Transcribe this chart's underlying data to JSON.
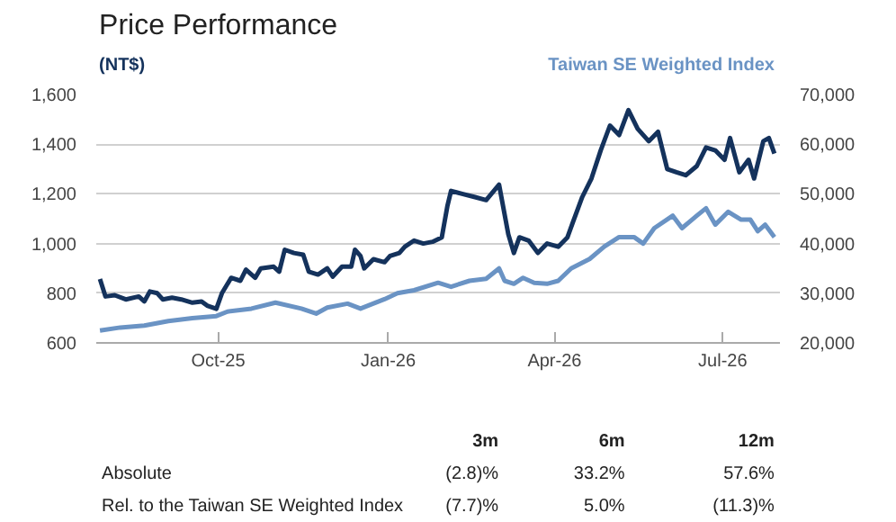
{
  "chart_data": {
    "type": "line",
    "title": "Price Performance",
    "ylabel": "(NT$)",
    "xlim": [
      "2025-07-27",
      "2026-08-01"
    ],
    "xticks": [
      {
        "value": "2025-10-01",
        "label": "Oct-25"
      },
      {
        "value": "2026-01-01",
        "label": "Jan-26"
      },
      {
        "value": "2026-04-01",
        "label": "Apr-26"
      },
      {
        "value": "2026-07-01",
        "label": "Jul-26"
      }
    ],
    "ylim": [
      600,
      1600
    ],
    "yticks": [
      600,
      800,
      {
        "value": 1000,
        "label": "1,000"
      },
      {
        "value": 1200,
        "label": "1,200"
      },
      {
        "value": 1400,
        "label": "1,400"
      },
      {
        "value": 1600,
        "label": "1,600"
      }
    ],
    "y2lim": [
      20000,
      70000
    ],
    "y2ticks": [
      {
        "value": 20000,
        "label": "20,000"
      },
      {
        "value": 30000,
        "label": "30,000"
      },
      {
        "value": 40000,
        "label": "40,000"
      },
      {
        "value": 50000,
        "label": "50,000"
      },
      {
        "value": 60000,
        "label": "60,000"
      },
      {
        "value": 70000,
        "label": "70,000"
      }
    ],
    "grid": "y",
    "series": [
      {
        "color": "#6a93c4",
        "name": "Taiwan SE Weighted Index",
        "axis": "y2",
        "x": [
          "2025-07-29",
          "2025-08-09",
          "2025-08-22",
          "2025-09-04",
          "2025-09-17",
          "2025-09-30",
          "2025-10-06",
          "2025-10-19",
          "2025-11-01",
          "2025-11-15",
          "2025-11-23",
          "2025-11-29",
          "2025-12-10",
          "2025-12-17",
          "2025-12-30",
          "2026-01-06",
          "2026-01-15",
          "2026-01-28",
          "2026-02-04",
          "2026-02-14",
          "2026-02-23",
          "2026-03-02",
          "2026-03-05",
          "2026-03-10",
          "2026-03-15",
          "2026-03-21",
          "2026-03-28",
          "2026-04-03",
          "2026-04-10",
          "2026-04-20",
          "2026-04-28",
          "2026-05-06",
          "2026-05-14",
          "2026-05-19",
          "2026-05-25",
          "2026-06-04",
          "2026-06-09",
          "2026-06-17",
          "2026-06-22",
          "2026-06-27",
          "2026-07-04",
          "2026-07-11",
          "2026-07-16",
          "2026-07-20",
          "2026-07-24",
          "2026-07-29"
        ],
        "values": [
          22500,
          23100,
          23500,
          24400,
          25000,
          25400,
          26300,
          26900,
          28100,
          26900,
          25900,
          27100,
          27900,
          26900,
          28800,
          30000,
          30600,
          32100,
          31300,
          32500,
          32900,
          35000,
          32500,
          31900,
          33100,
          32100,
          31900,
          32500,
          35000,
          36900,
          39400,
          41300,
          41300,
          40000,
          43100,
          45600,
          43100,
          45600,
          47100,
          43800,
          46400,
          44800,
          44800,
          42500,
          43800,
          41300
        ]
      },
      {
        "color": "#14325c",
        "x": [
          "2025-07-29",
          "2025-08-01",
          "2025-08-06",
          "2025-08-12",
          "2025-08-19",
          "2025-08-22",
          "2025-08-25",
          "2025-08-29",
          "2025-09-01",
          "2025-09-06",
          "2025-09-11",
          "2025-09-17",
          "2025-09-22",
          "2025-09-25",
          "2025-09-30",
          "2025-10-03",
          "2025-10-08",
          "2025-10-13",
          "2025-10-16",
          "2025-10-21",
          "2025-10-24",
          "2025-10-31",
          "2025-11-03",
          "2025-11-06",
          "2025-11-11",
          "2025-11-16",
          "2025-11-19",
          "2025-11-24",
          "2025-11-29",
          "2025-12-02",
          "2025-12-07",
          "2025-12-12",
          "2025-12-14",
          "2025-12-17",
          "2025-12-19",
          "2025-12-24",
          "2025-12-30",
          "2026-01-02",
          "2026-01-07",
          "2026-01-10",
          "2026-01-15",
          "2026-01-20",
          "2026-01-25",
          "2026-01-30",
          "2026-02-02",
          "2026-02-04",
          "2026-02-10",
          "2026-02-17",
          "2026-02-23",
          "2026-03-02",
          "2026-03-07",
          "2026-03-10",
          "2026-03-13",
          "2026-03-18",
          "2026-03-23",
          "2026-03-28",
          "2026-04-03",
          "2026-04-08",
          "2026-04-11",
          "2026-04-16",
          "2026-04-21",
          "2026-04-26",
          "2026-05-01",
          "2026-05-06",
          "2026-05-11",
          "2026-05-16",
          "2026-05-22",
          "2026-05-27",
          "2026-06-01",
          "2026-06-06",
          "2026-06-11",
          "2026-06-17",
          "2026-06-22",
          "2026-06-27",
          "2026-07-02",
          "2026-07-05",
          "2026-07-10",
          "2026-07-15",
          "2026-07-18",
          "2026-07-23",
          "2026-07-26",
          "2026-07-29"
        ],
        "values": [
          857,
          787,
          792,
          775,
          787,
          767,
          807,
          800,
          775,
          782,
          775,
          762,
          767,
          750,
          737,
          800,
          862,
          850,
          895,
          862,
          900,
          907,
          887,
          975,
          962,
          955,
          887,
          875,
          900,
          867,
          907,
          907,
          975,
          950,
          900,
          937,
          925,
          950,
          962,
          987,
          1012,
          1000,
          1007,
          1025,
          1150,
          1212,
          1200,
          1187,
          1175,
          1237,
          1037,
          962,
          1025,
          1012,
          962,
          1000,
          987,
          1025,
          1087,
          1187,
          1262,
          1375,
          1475,
          1437,
          1537,
          1462,
          1412,
          1450,
          1300,
          1287,
          1275,
          1312,
          1387,
          1375,
          1337,
          1425,
          1287,
          1337,
          1262,
          1412,
          1425,
          1362
        ]
      }
    ],
    "annotations": [
      "3m",
      "6m",
      "12m",
      "Absolute",
      "(2.8)%",
      "33.2%",
      "57.6%",
      "Rel. to the Taiwan SE Weighted Index",
      "(7.7)%",
      "5.0%",
      "(11.3)%"
    ]
  }
}
